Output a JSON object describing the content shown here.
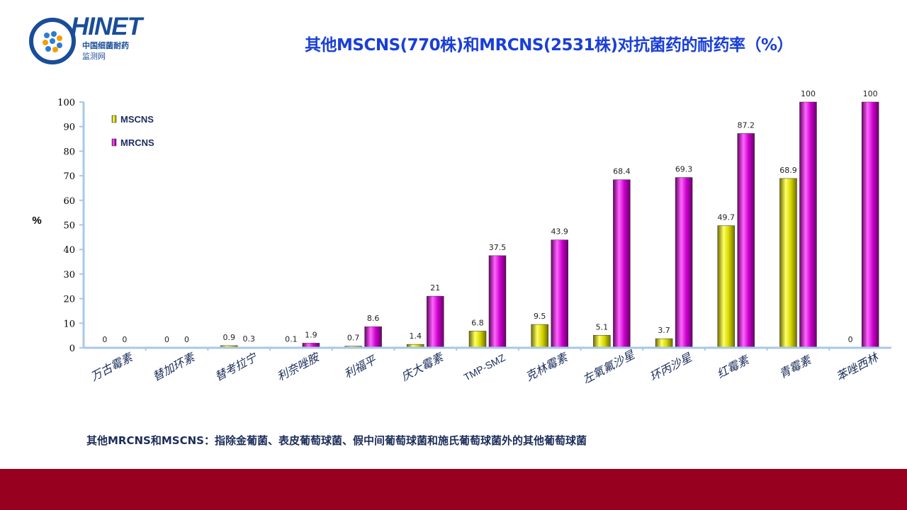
{
  "header": {
    "logo_text": "HINET",
    "logo_sub1": "中国细菌耐药",
    "logo_sub2": "监测网",
    "title": "其他MSCNS(770株)和MRCNS(2531株)对抗菌药的耐药率（%）"
  },
  "footnote": "其他MRCNS和MSCNS：指除金葡菌、表皮葡萄球菌、假中间葡萄球菌和施氏葡萄球菌外的其他葡萄球菌",
  "colors": {
    "mscns": "#d6d600",
    "mrcns": "#cc00cc",
    "axis": "#a8c8e8",
    "bottom_bar": "#98001f",
    "title": "#1a3fd6"
  },
  "chart_data": {
    "type": "bar",
    "ylabel": "%",
    "ylim": [
      0,
      100
    ],
    "yticks": [
      0,
      10,
      20,
      30,
      40,
      50,
      60,
      70,
      80,
      90,
      100
    ],
    "legend_position": "top-left",
    "categories": [
      "万古霉素",
      "替加环素",
      "替考拉宁",
      "利奈唑胺",
      "利福平",
      "庆大霉素",
      "TMP-SMZ",
      "克林霉素",
      "左氧氟沙星",
      "环丙沙星",
      "红霉素",
      "青霉素",
      "苯唑西林"
    ],
    "series": [
      {
        "name": "MSCNS",
        "values": [
          0,
          0,
          0.9,
          0.1,
          0.7,
          1.4,
          6.8,
          9.5,
          5.1,
          3.7,
          49.7,
          68.9,
          0
        ],
        "labels": [
          "0",
          "0",
          "0.9",
          "0.1",
          "0.7",
          "1.4",
          "6.8",
          "9.5",
          "5.1",
          "3.7",
          "49.7",
          "68.9",
          "0"
        ]
      },
      {
        "name": "MRCNS",
        "values": [
          0,
          0,
          0.3,
          1.9,
          8.6,
          21,
          37.5,
          43.9,
          68.4,
          69.3,
          87.2,
          100,
          100
        ],
        "labels": [
          "0",
          "0",
          "0.3",
          "1.9",
          "8.6",
          "21",
          "37.5",
          "43.9",
          "68.4",
          "69.3",
          "87.2",
          "100",
          "100"
        ]
      }
    ]
  }
}
